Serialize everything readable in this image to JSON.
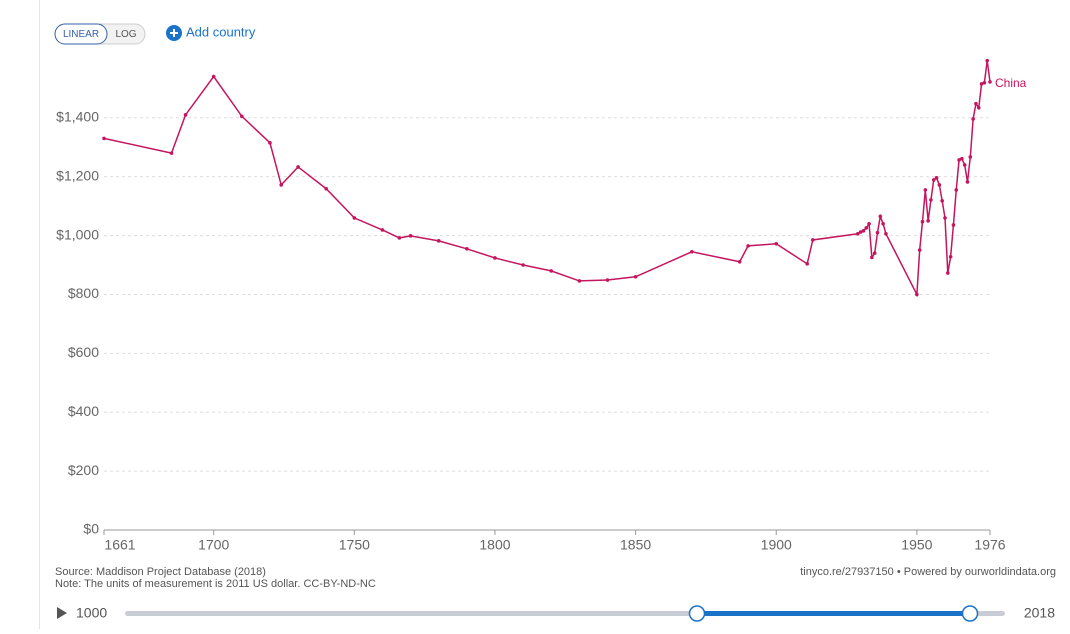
{
  "controls": {
    "linear": "LINEAR",
    "log": "LOG",
    "add": "Add country"
  },
  "footer": {
    "source": "Source: Maddison Project Database (2018)",
    "note": "Note: The units of measurement is 2011 US dollar. CC-BY-ND-NC",
    "link": "tinyco.re/27937150 • Powered by ourworldindata.org"
  },
  "timeline": {
    "start": "1000",
    "end": "2018"
  },
  "chart_data": {
    "type": "line",
    "x": [
      1661,
      1685,
      1690,
      1700,
      1710,
      1720,
      1724,
      1730,
      1740,
      1750,
      1760,
      1766,
      1770,
      1780,
      1790,
      1800,
      1810,
      1820,
      1830,
      1840,
      1850,
      1870,
      1887,
      1890,
      1900,
      1911,
      1913,
      1929,
      1930,
      1931,
      1932,
      1933,
      1934,
      1935,
      1936,
      1937,
      1938,
      1939,
      1950,
      1951,
      1952,
      1953,
      1954,
      1955,
      1956,
      1957,
      1958,
      1959,
      1960,
      1961,
      1962,
      1963,
      1964,
      1965,
      1966,
      1967,
      1968,
      1969,
      1970,
      1971,
      1972,
      1973,
      1974,
      1975,
      1976
    ],
    "series": [
      {
        "name": "China",
        "color": "#c4155f",
        "values": [
          1330,
          1280,
          1410,
          1540,
          1405,
          1315,
          1172,
          1233,
          1159,
          1060,
          1019,
          992,
          999,
          982,
          955,
          924,
          900,
          880,
          846,
          849,
          860,
          945,
          911,
          965,
          972,
          904,
          985,
          1006,
          1012,
          1016,
          1026,
          1040,
          926,
          940,
          1010,
          1065,
          1040,
          1006,
          800,
          951,
          1047,
          1155,
          1050,
          1121,
          1189,
          1196,
          1172,
          1118,
          1060,
          873,
          928,
          1036,
          1155,
          1257,
          1261,
          1240,
          1182,
          1267,
          1396,
          1448,
          1434,
          1515,
          1519,
          1594,
          1522
        ]
      }
    ],
    "xlim": [
      1661,
      1976
    ],
    "xticks": [
      1661,
      1700,
      1750,
      1800,
      1850,
      1900,
      1950,
      1976
    ],
    "ylim": [
      0,
      1600
    ],
    "yticks": [
      {
        "value": 0,
        "label": "$0"
      },
      {
        "value": 200,
        "label": "$200"
      },
      {
        "value": 400,
        "label": "$400"
      },
      {
        "value": 600,
        "label": "$600"
      },
      {
        "value": 800,
        "label": "$800"
      },
      {
        "value": 1000,
        "label": "$1,000"
      },
      {
        "value": 1200,
        "label": "$1,200"
      },
      {
        "value": 1400,
        "label": "$1,400"
      }
    ],
    "grid": true
  }
}
